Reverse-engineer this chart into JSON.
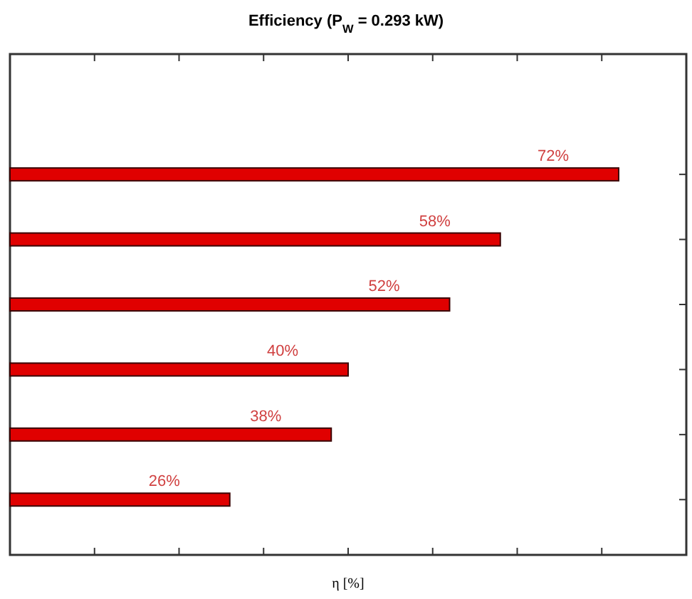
{
  "chart_data": {
    "type": "bar",
    "orientation": "horizontal",
    "title": "Efficiency (P$_{W}$ = 0.293 kW)",
    "xlabel": "η [%]",
    "categories": [
      null,
      null,
      null,
      null,
      null,
      null
    ],
    "values": [
      72,
      58,
      52,
      40,
      38,
      26
    ],
    "value_labels": [
      "72%",
      "58%",
      "52%",
      "40%",
      "38%",
      "26%"
    ],
    "color": "#e00000",
    "xlim": [
      0,
      80
    ],
    "xticks": [
      {
        "value": 10,
        "label": null
      },
      {
        "value": 20,
        "label": null
      },
      {
        "value": 30,
        "label": null
      },
      {
        "value": 40,
        "label": null
      },
      {
        "value": 50,
        "label": null
      },
      {
        "value": 60,
        "label": null
      },
      {
        "value": 70,
        "label": null
      }
    ],
    "data_labels": false
  }
}
